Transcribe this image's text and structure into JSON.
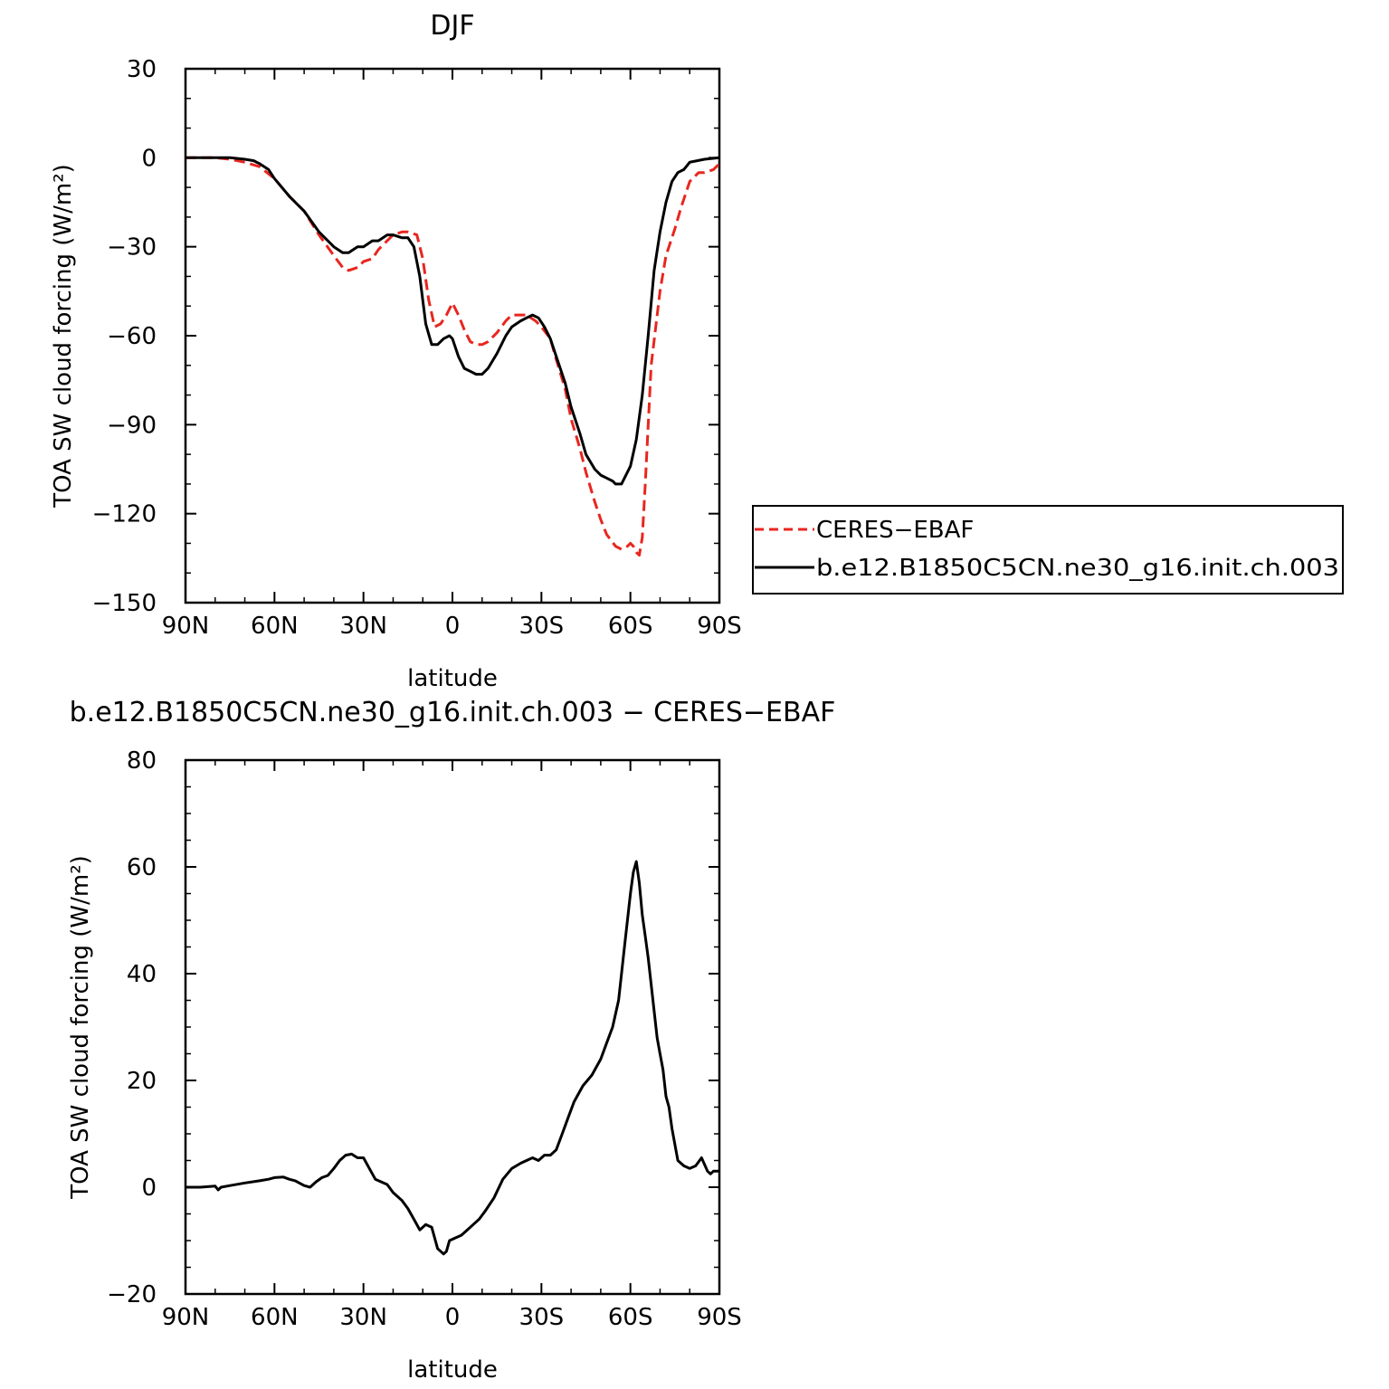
{
  "chart_data": [
    {
      "type": "line",
      "title": "DJF",
      "xlabel": "latitude",
      "ylabel": "TOA SW cloud forcing (W/m²)",
      "xlim": [
        90,
        -90
      ],
      "ylim": [
        -150,
        30
      ],
      "x_ticks": [
        90,
        60,
        30,
        0,
        -30,
        -60,
        -90
      ],
      "x_tick_labels": [
        "90N",
        "60N",
        "30N",
        "0",
        "30S",
        "60S",
        "90S"
      ],
      "y_ticks": [
        30,
        0,
        -30,
        -60,
        -90,
        -120,
        -150
      ],
      "y_tick_labels": [
        "30",
        "0",
        "−30",
        "−60",
        "−90",
        "−120",
        "−150"
      ],
      "legend": "right",
      "grid": false,
      "series": [
        {
          "name": "CERES−EBAF",
          "color": "#e8261f",
          "style": "dashed",
          "x": [
            90,
            85,
            80,
            75,
            70,
            65,
            60,
            55,
            50,
            45,
            40,
            37,
            35,
            32,
            30,
            27,
            25,
            22,
            20,
            17,
            15,
            12,
            10,
            8,
            6,
            4,
            2,
            0,
            -2,
            -4,
            -6,
            -8,
            -10,
            -12,
            -15,
            -18,
            -20,
            -23,
            -25,
            -28,
            -30,
            -33,
            -35,
            -38,
            -40,
            -43,
            -45,
            -48,
            -50,
            -52,
            -55,
            -57,
            -59,
            -60,
            -61,
            -62,
            -63,
            -64,
            -65,
            -67,
            -70,
            -72,
            -75,
            -77,
            -80,
            -83,
            -85,
            -88,
            -90
          ],
          "y": [
            0,
            0,
            0,
            -0.5,
            -1.5,
            -3,
            -7,
            -13,
            -18,
            -26,
            -33,
            -37,
            -38,
            -37,
            -35,
            -34,
            -31,
            -28,
            -26,
            -25,
            -25,
            -26,
            -34,
            -48,
            -57,
            -56,
            -53,
            -49,
            -53,
            -58,
            -62,
            -63,
            -63,
            -62,
            -59,
            -55,
            -53,
            -53,
            -53,
            -55,
            -57,
            -61,
            -68,
            -78,
            -88,
            -98,
            -106,
            -116,
            -122,
            -127,
            -131,
            -132,
            -131,
            -130,
            -131,
            -133,
            -134,
            -128,
            -110,
            -70,
            -45,
            -33,
            -24,
            -17,
            -8,
            -5,
            -5,
            -4,
            -2
          ]
        },
        {
          "name": "b.e12.B1850C5CN.ne30_g16.init.ch.003",
          "color": "#000000",
          "style": "solid",
          "x": [
            90,
            85,
            80,
            75,
            70,
            67,
            65,
            62,
            60,
            55,
            50,
            45,
            40,
            37,
            35,
            32,
            30,
            27,
            25,
            22,
            20,
            17,
            15,
            13,
            11,
            9,
            7,
            5,
            3,
            1,
            0,
            -2,
            -4,
            -6,
            -8,
            -10,
            -12,
            -15,
            -18,
            -20,
            -23,
            -25,
            -27,
            -29,
            -31,
            -33,
            -35,
            -38,
            -40,
            -43,
            -45,
            -48,
            -50,
            -52,
            -54,
            -55,
            -57,
            -60,
            -62,
            -64,
            -66,
            -68,
            -70,
            -72,
            -74,
            -76,
            -78,
            -80,
            -85,
            -90
          ],
          "y": [
            0,
            0,
            0,
            0,
            -0.5,
            -1,
            -2,
            -4,
            -7,
            -13,
            -18,
            -25,
            -30,
            -32,
            -32,
            -30,
            -30,
            -28,
            -28,
            -26,
            -26,
            -27,
            -27,
            -30,
            -40,
            -56,
            -63,
            -63,
            -61,
            -60,
            -61,
            -67,
            -71,
            -72,
            -73,
            -73,
            -71,
            -66,
            -60,
            -57,
            -55,
            -54,
            -53,
            -54,
            -57,
            -61,
            -67,
            -76,
            -84,
            -93,
            -100,
            -105,
            -107,
            -108,
            -109,
            -110,
            -110,
            -104,
            -95,
            -80,
            -60,
            -38,
            -25,
            -15,
            -8,
            -5,
            -4,
            -1.5,
            -0.5,
            0
          ]
        }
      ]
    },
    {
      "type": "line",
      "title": "b.e12.B1850C5CN.ne30_g16.init.ch.003 − CERES−EBAF",
      "xlabel": "latitude",
      "ylabel": "TOA SW cloud forcing (W/m²)",
      "xlim": [
        90,
        -90
      ],
      "ylim": [
        -20,
        80
      ],
      "x_ticks": [
        90,
        60,
        30,
        0,
        -30,
        -60,
        -90
      ],
      "x_tick_labels": [
        "90N",
        "60N",
        "30N",
        "0",
        "30S",
        "60S",
        "90S"
      ],
      "y_ticks": [
        80,
        60,
        40,
        20,
        0,
        -20
      ],
      "y_tick_labels": [
        "80",
        "60",
        "40",
        "20",
        "0",
        "−20"
      ],
      "grid": false,
      "series": [
        {
          "color": "#000000",
          "style": "solid",
          "x": [
            90,
            85,
            80,
            79,
            78,
            75,
            70,
            65,
            62,
            60,
            57,
            55,
            53,
            50,
            48,
            46,
            44,
            42,
            40,
            38,
            36,
            34,
            32,
            30,
            28,
            26,
            24,
            22,
            20,
            17,
            15,
            13,
            11,
            9,
            7,
            5,
            3,
            2,
            1,
            -1,
            -3,
            -5,
            -7,
            -9,
            -11,
            -14,
            -17,
            -20,
            -23,
            -25,
            -27,
            -29,
            -31,
            -33,
            -35,
            -37,
            -39,
            -41,
            -44,
            -47,
            -50,
            -52,
            -54,
            -56,
            -58,
            -60,
            -61,
            -62,
            -63,
            -64,
            -65,
            -66,
            -67,
            -69,
            -70,
            -71,
            -72,
            -73,
            -74,
            -76,
            -78,
            -80,
            -82,
            -84,
            -86,
            -87,
            -88,
            -89,
            -90
          ],
          "y": [
            0,
            0,
            0.2,
            -0.5,
            0,
            0.3,
            0.8,
            1.2,
            1.5,
            1.8,
            1.9,
            1.5,
            1.2,
            0.3,
            0,
            1,
            1.8,
            2.2,
            3.5,
            5,
            6,
            6.2,
            5.5,
            5.5,
            3.5,
            1.5,
            1,
            0.5,
            -1,
            -2.5,
            -4,
            -6,
            -8,
            -7,
            -7.5,
            -11.5,
            -12.5,
            -12,
            -10,
            -9.5,
            -9,
            -8,
            -7,
            -6,
            -4.5,
            -2,
            1.5,
            3.5,
            4.5,
            5,
            5.5,
            5,
            6,
            6,
            7,
            10,
            13,
            16,
            19,
            21,
            24,
            27,
            30,
            35,
            45,
            55,
            59,
            61,
            57,
            51,
            47,
            43,
            38,
            28,
            25,
            22,
            17,
            15,
            11,
            5,
            4,
            3.5,
            4,
            5.5,
            3,
            2.5,
            3,
            3,
            3
          ]
        }
      ]
    }
  ]
}
